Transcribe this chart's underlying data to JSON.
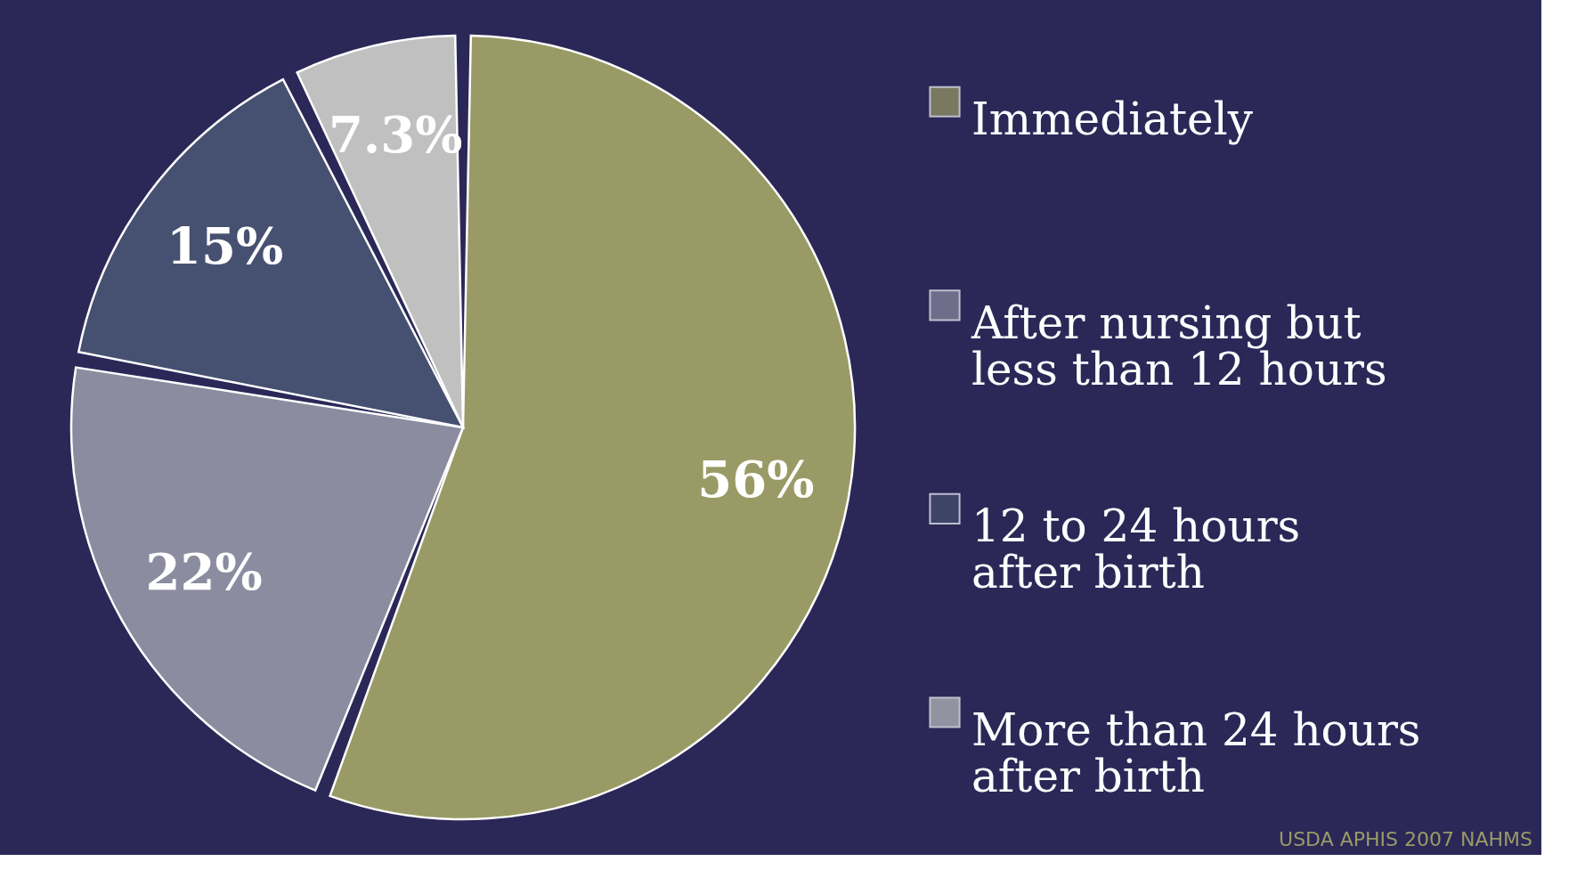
{
  "chart_data": {
    "type": "pie",
    "categories": [
      "Immediately",
      "After nursing but less than 12 hours",
      "12 to 24 hours after birth",
      "More than 24 hours after birth"
    ],
    "values": [
      56,
      22,
      15,
      7.3
    ],
    "colors": [
      "#9a9a66",
      "#8c8ca0",
      "#465070",
      "#c0c0c0"
    ],
    "value_labels": [
      "56%",
      "22%",
      "15%",
      "7.3%"
    ],
    "legend": "right",
    "annotations": [
      "USDA APHIS 2007 NAHMS"
    ]
  }
}
